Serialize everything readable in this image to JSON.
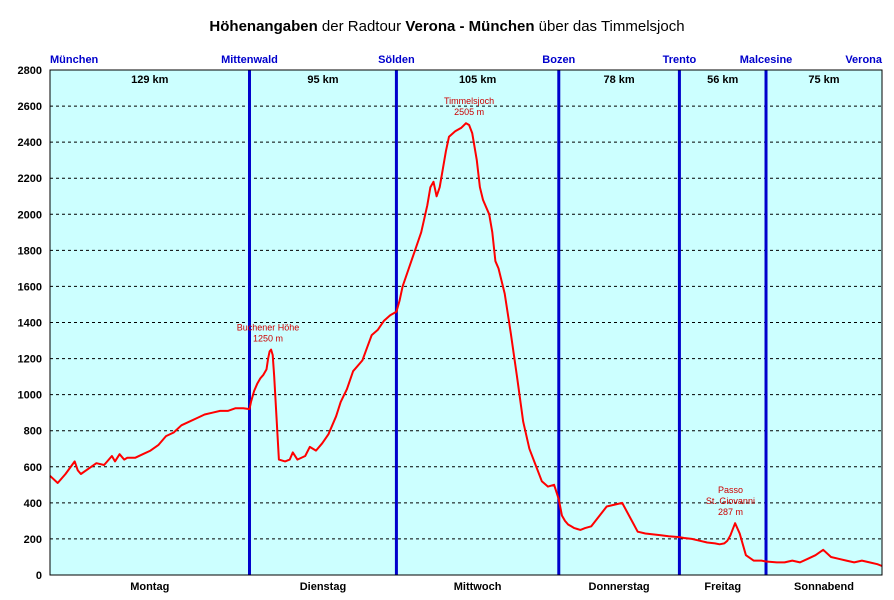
{
  "title": {
    "part1": "Höhenangaben",
    "part2": " der Radtour ",
    "part3": "Verona - München",
    "part4": " über das Timmelsjoch"
  },
  "colors": {
    "background": "#ccffff",
    "line": "#ff0000",
    "separator": "#0000cc",
    "town_label": "#0000cc",
    "annotation": "#cc0000"
  },
  "chart_data": {
    "type": "line",
    "xlabel": "",
    "ylabel": "",
    "xlim": [
      0,
      538
    ],
    "ylim": [
      0,
      2800
    ],
    "yticks": [
      0,
      200,
      400,
      600,
      800,
      1000,
      1200,
      1400,
      1600,
      1800,
      2000,
      2200,
      2400,
      2600,
      2800
    ],
    "grid": "horizontal-dashed",
    "towns": [
      {
        "name": "München",
        "km": 0
      },
      {
        "name": "Mittenwald",
        "km": 129
      },
      {
        "name": "Sölden",
        "km": 224
      },
      {
        "name": "Bozen",
        "km": 329
      },
      {
        "name": "Trento",
        "km": 407
      },
      {
        "name": "Malcesine",
        "km": 463
      },
      {
        "name": "Verona",
        "km": 538
      }
    ],
    "stages": [
      {
        "distance": "129 km",
        "day": "Montag"
      },
      {
        "distance": "95 km",
        "day": "Dienstag"
      },
      {
        "distance": "105 km",
        "day": "Mittwoch"
      },
      {
        "distance": "78 km",
        "day": "Donnerstag"
      },
      {
        "distance": "56 km",
        "day": "Freitag"
      },
      {
        "distance": "75 km",
        "day": "Sonnabend"
      }
    ],
    "annotations": [
      {
        "line1": "Buchener Höhe",
        "line2": "1250 m",
        "km": 141,
        "elevation": 1250
      },
      {
        "line1": "Timmelsjoch",
        "line2": "2505 m",
        "km": 271,
        "elevation": 2505
      },
      {
        "line1": "Passo",
        "line2": "St. Giovanni",
        "line3": "287 m",
        "km": 440,
        "elevation": 287
      }
    ],
    "series": [
      {
        "x": [
          0,
          5,
          10,
          16,
          18,
          20,
          25,
          30,
          35,
          40,
          42,
          45,
          48,
          50,
          55,
          60,
          65,
          70,
          75,
          80,
          85,
          90,
          95,
          100,
          105,
          110,
          115,
          120,
          125,
          129,
          130,
          132,
          134,
          136,
          138,
          140,
          141,
          142,
          143,
          144,
          145,
          148,
          152,
          155,
          157,
          160,
          165,
          168,
          172,
          176,
          180,
          185,
          188,
          192,
          196,
          200,
          202,
          205,
          208,
          212,
          216,
          220,
          224,
          226,
          228,
          230,
          232,
          236,
          240,
          244,
          246,
          248,
          250,
          252,
          254,
          256,
          258,
          262,
          266,
          269,
          271,
          273,
          276,
          278,
          280,
          284,
          286,
          288,
          290,
          294,
          298,
          302,
          306,
          310,
          314,
          318,
          322,
          326,
          329,
          331,
          333,
          335,
          337,
          339,
          341,
          343,
          346,
          350,
          360,
          370,
          380,
          385,
          390,
          395,
          400,
          407,
          410,
          415,
          420,
          425,
          430,
          433,
          436,
          438,
          440,
          443,
          446,
          450,
          455,
          460,
          463,
          470,
          475,
          480,
          485,
          490,
          495,
          500,
          505,
          510,
          515,
          520,
          525,
          530,
          535,
          538
        ],
        "y": [
          550,
          510,
          560,
          630,
          580,
          560,
          590,
          620,
          610,
          660,
          630,
          670,
          640,
          650,
          650,
          670,
          690,
          720,
          770,
          790,
          830,
          850,
          870,
          890,
          900,
          910,
          910,
          925,
          925,
          920,
          960,
          1020,
          1060,
          1090,
          1110,
          1140,
          1200,
          1240,
          1250,
          1220,
          1100,
          640,
          630,
          640,
          680,
          640,
          660,
          710,
          690,
          730,
          780,
          880,
          960,
          1030,
          1130,
          1170,
          1190,
          1260,
          1330,
          1360,
          1410,
          1440,
          1460,
          1520,
          1600,
          1650,
          1700,
          1800,
          1900,
          2050,
          2150,
          2180,
          2100,
          2150,
          2250,
          2350,
          2430,
          2460,
          2480,
          2505,
          2495,
          2450,
          2300,
          2150,
          2080,
          2000,
          1900,
          1740,
          1700,
          1560,
          1340,
          1100,
          850,
          700,
          610,
          520,
          490,
          500,
          420,
          330,
          300,
          280,
          270,
          260,
          255,
          250,
          260,
          270,
          380,
          400,
          240,
          230,
          225,
          220,
          215,
          210,
          205,
          200,
          190,
          180,
          175,
          170,
          175,
          190,
          220,
          287,
          230,
          110,
          80,
          80,
          75,
          70,
          70,
          80,
          70,
          90,
          110,
          140,
          100,
          90,
          80,
          70,
          80,
          70,
          60,
          50
        ]
      }
    ]
  }
}
